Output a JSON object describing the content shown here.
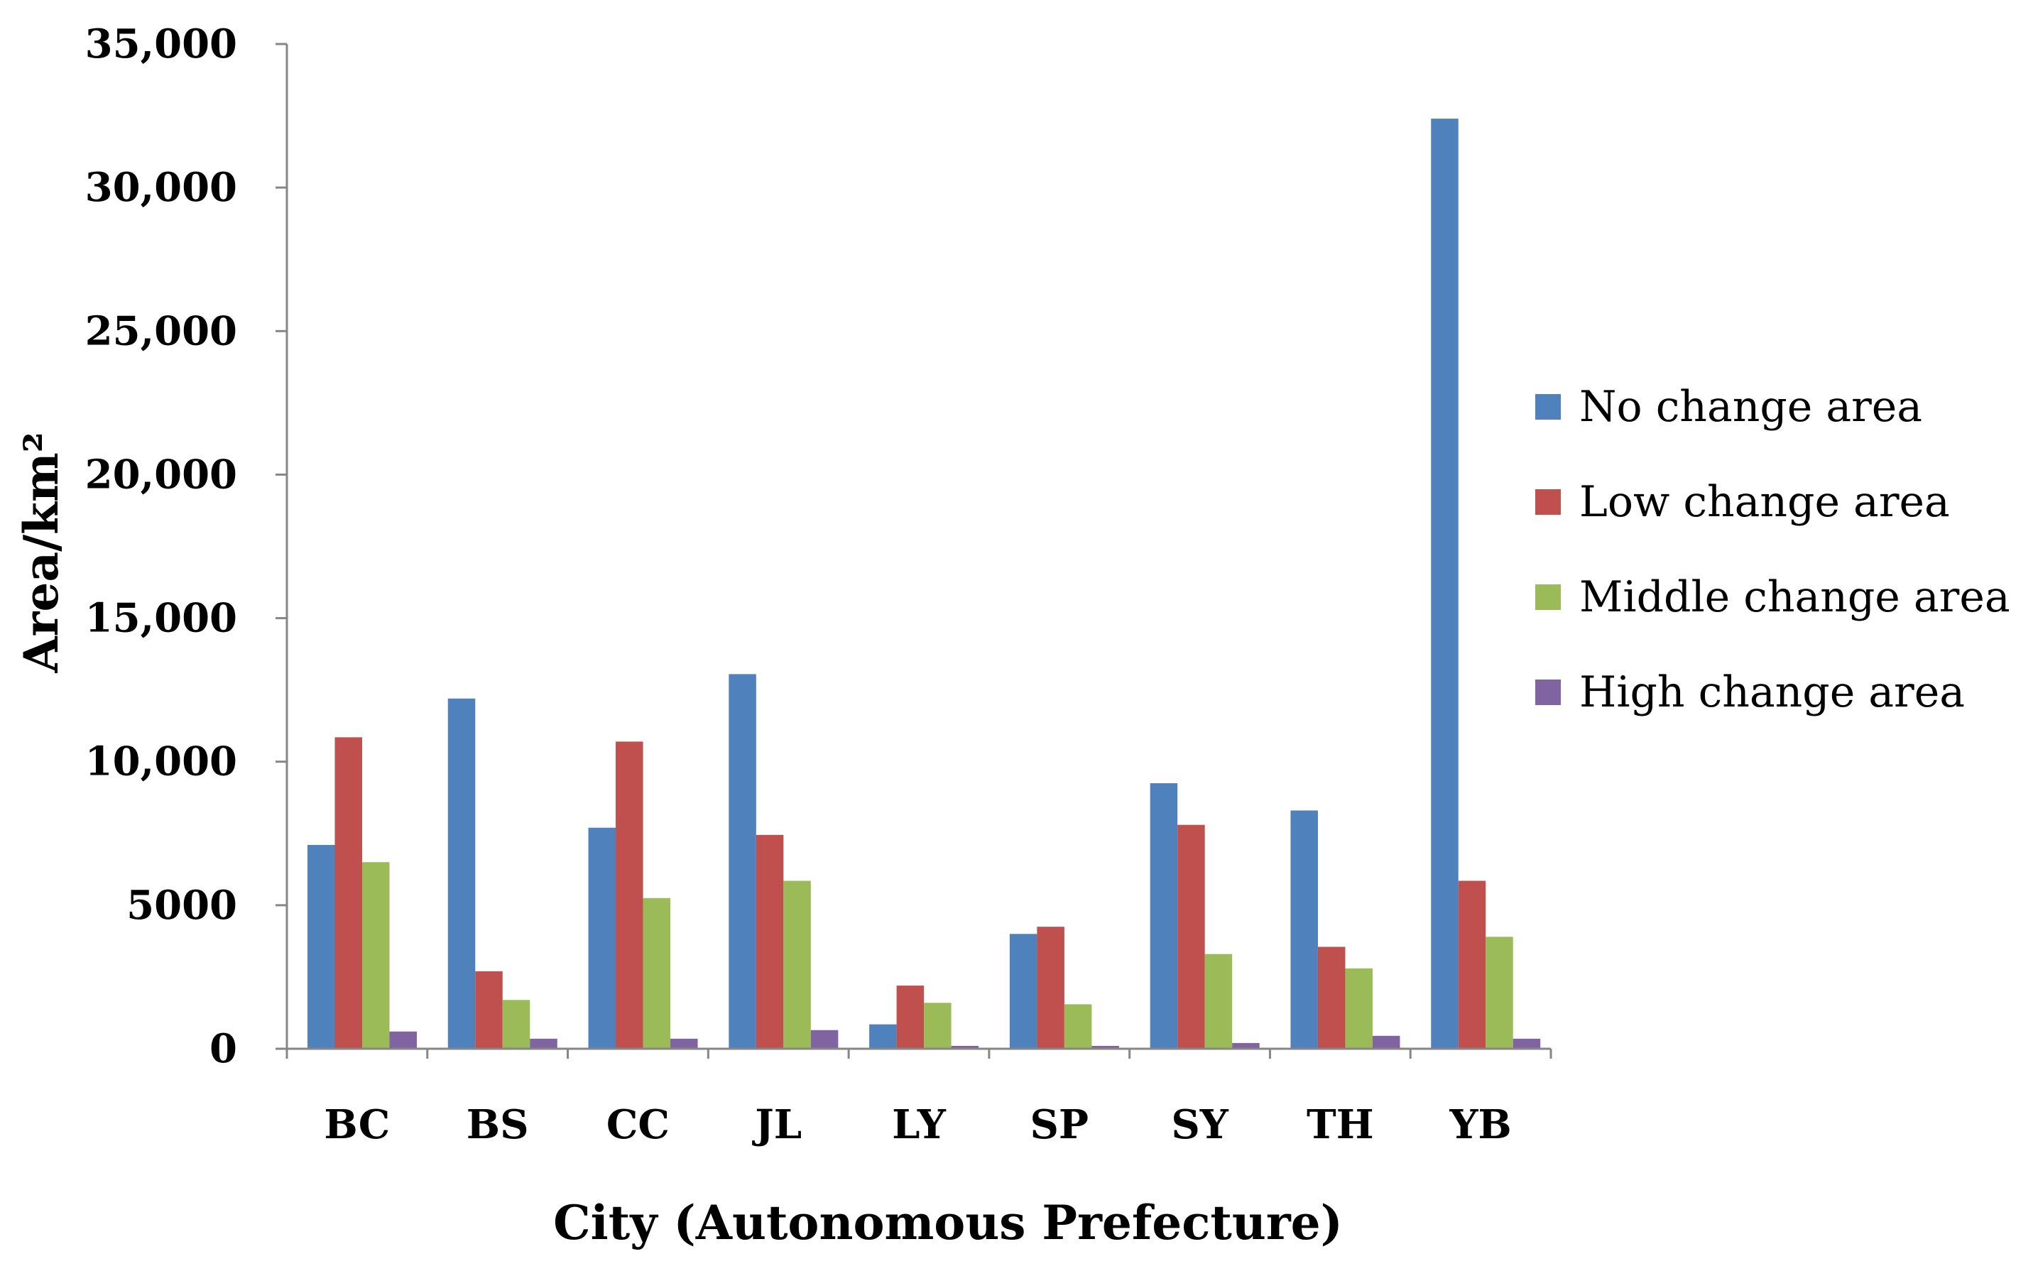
{
  "chart_data": {
    "type": "bar",
    "title": "",
    "xlabel": "City (Autonomous Prefecture)",
    "ylabel": "Area/km²",
    "ylim": [
      0,
      35000
    ],
    "yticks": [
      0,
      5000,
      10000,
      15000,
      20000,
      25000,
      30000,
      35000
    ],
    "ytick_labels": [
      "0",
      "5000",
      "10,000",
      "15,000",
      "20,000",
      "25,000",
      "30,000",
      "35,000"
    ],
    "categories": [
      "BC",
      "BS",
      "CC",
      "JL",
      "LY",
      "SP",
      "SY",
      "TH",
      "YB"
    ],
    "series": [
      {
        "name": "No change area",
        "color": "#4f81bd",
        "values": [
          7100,
          12200,
          7700,
          13050,
          850,
          4000,
          9250,
          8300,
          32400
        ]
      },
      {
        "name": "Low change area",
        "color": "#c0504d",
        "values": [
          10850,
          2700,
          10700,
          7450,
          2200,
          4250,
          7800,
          3550,
          5850
        ]
      },
      {
        "name": "Middle change area",
        "color": "#9bbb59",
        "values": [
          6500,
          1700,
          5250,
          5850,
          1600,
          1550,
          3300,
          2800,
          3900
        ]
      },
      {
        "name": "High change area",
        "color": "#8064a2",
        "values": [
          600,
          350,
          350,
          650,
          100,
          100,
          200,
          450,
          350
        ]
      }
    ],
    "grid": false,
    "legend_position": "right"
  }
}
